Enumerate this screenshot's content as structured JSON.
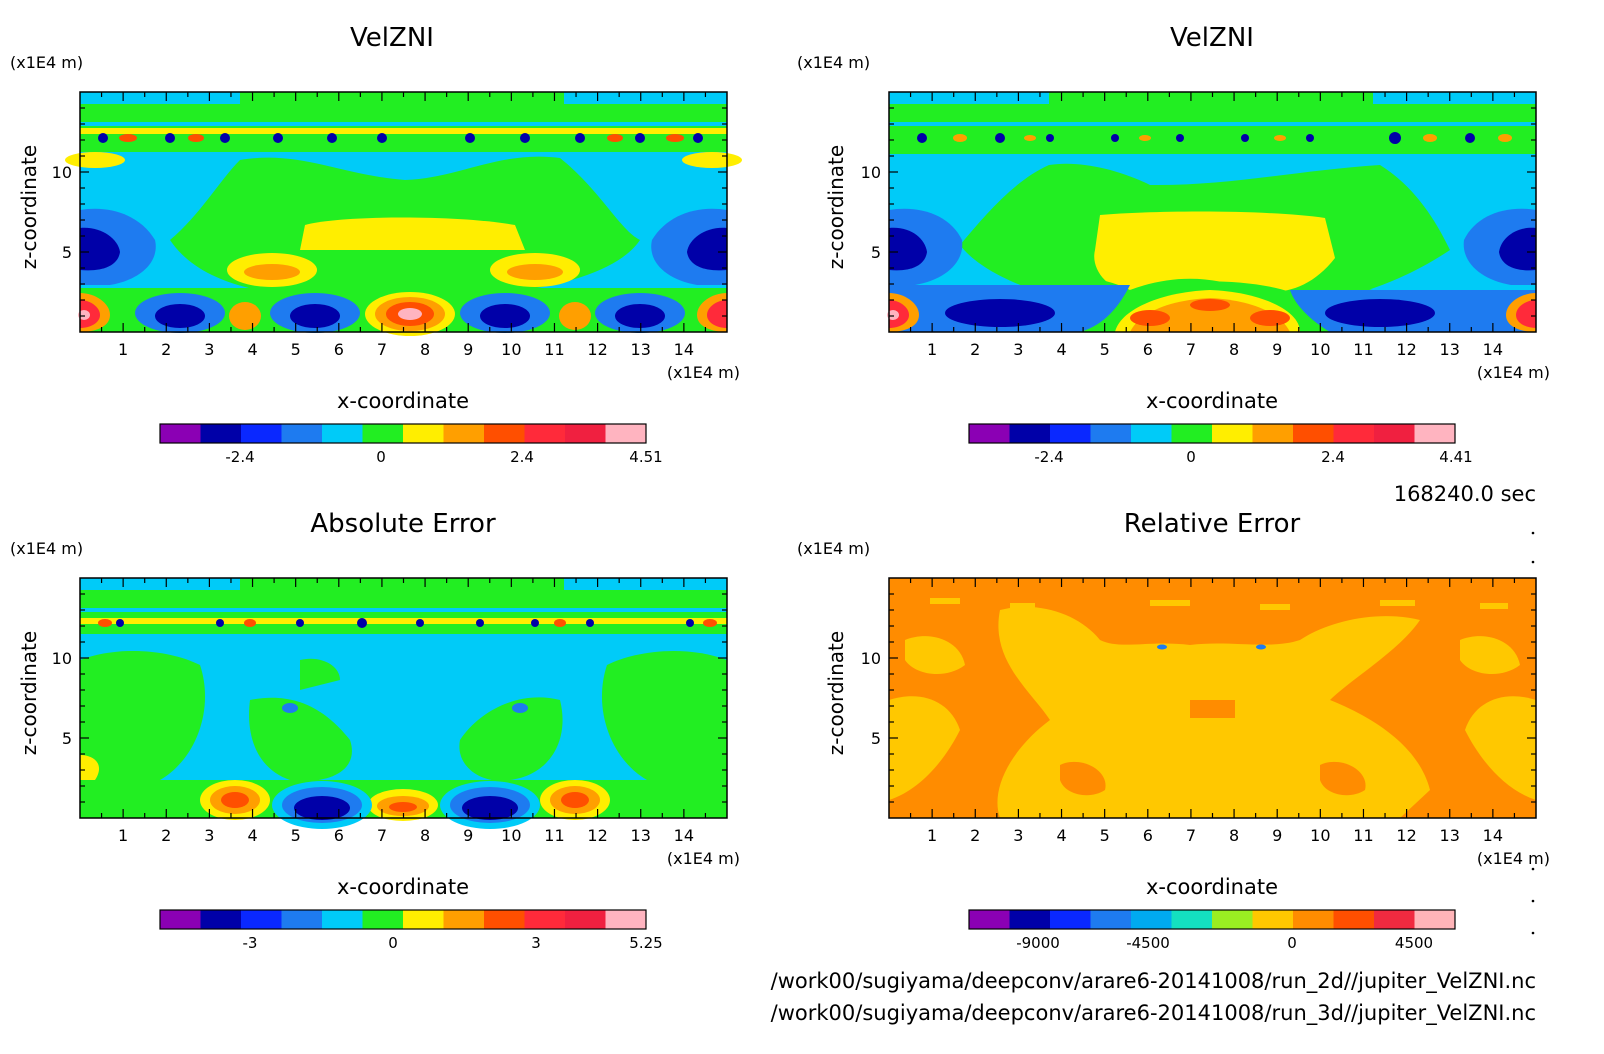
{
  "time_label": "168240.0 sec",
  "file_paths": [
    "/work00/sugiyama/deepconv/arare6-20141008/run_2d//jupiter_VelZNI.nc",
    "/work00/sugiyama/deepconv/arare6-20141008/run_3d//jupiter_VelZNI.nc"
  ],
  "colors": {
    "shade12": [
      "#8b00b4",
      "#0000a8",
      "#0a28ff",
      "#1e7bf0",
      "#00cbf8",
      "#22ee22",
      "#ffee00",
      "#ff9f00",
      "#ff4f00",
      "#ff2a3a",
      "#f02040",
      "#ffb4c0"
    ],
    "relative": [
      "#8b00b4",
      "#0000a8",
      "#0a28ff",
      "#1e7bf0",
      "#00aaf0",
      "#14e0c0",
      "#9aee22",
      "#ffc800",
      "#ff8c00",
      "#ff4f00",
      "#f02a40",
      "#ffb4b8"
    ]
  },
  "chart_data": [
    {
      "type": "heatmap",
      "title": "VelZNI",
      "xlabel": "x-coordinate",
      "ylabel": "z-coordinate",
      "x_unit": "(x1E4 m)",
      "y_unit": "(x1E4 m)",
      "xlim": [
        0,
        15
      ],
      "ylim": [
        0,
        15
      ],
      "x_ticks": [
        "1",
        "2",
        "3",
        "4",
        "5",
        "6",
        "7",
        "8",
        "9",
        "10",
        "11",
        "12",
        "13",
        "14"
      ],
      "y_ticks": [
        "5",
        "10"
      ],
      "colorbar_labels": [
        "-2.4",
        "0",
        "2.4",
        "4.51"
      ],
      "colorbar_max": 4.51
    },
    {
      "type": "heatmap",
      "title": "VelZNI",
      "xlabel": "x-coordinate",
      "ylabel": "z-coordinate",
      "x_unit": "(x1E4 m)",
      "y_unit": "(x1E4 m)",
      "xlim": [
        0,
        15
      ],
      "ylim": [
        0,
        15
      ],
      "x_ticks": [
        "1",
        "2",
        "3",
        "4",
        "5",
        "6",
        "7",
        "8",
        "9",
        "10",
        "11",
        "12",
        "13",
        "14"
      ],
      "y_ticks": [
        "5",
        "10"
      ],
      "colorbar_labels": [
        "-2.4",
        "0",
        "2.4",
        "4.41"
      ],
      "colorbar_max": 4.41
    },
    {
      "type": "heatmap",
      "title": "Absolute Error",
      "xlabel": "x-coordinate",
      "ylabel": "z-coordinate",
      "x_unit": "(x1E4 m)",
      "y_unit": "(x1E4 m)",
      "xlim": [
        0,
        15
      ],
      "ylim": [
        0,
        15
      ],
      "x_ticks": [
        "1",
        "2",
        "3",
        "4",
        "5",
        "6",
        "7",
        "8",
        "9",
        "10",
        "11",
        "12",
        "13",
        "14"
      ],
      "y_ticks": [
        "5",
        "10"
      ],
      "colorbar_labels": [
        "-3",
        "0",
        "3",
        "5.25"
      ],
      "colorbar_max": 5.25
    },
    {
      "type": "heatmap",
      "title": "Relative Error",
      "xlabel": "x-coordinate",
      "ylabel": "z-coordinate",
      "x_unit": "(x1E4 m)",
      "y_unit": "(x1E4 m)",
      "xlim": [
        0,
        15
      ],
      "ylim": [
        0,
        15
      ],
      "x_ticks": [
        "1",
        "2",
        "3",
        "4",
        "5",
        "6",
        "7",
        "8",
        "9",
        "10",
        "11",
        "12",
        "13",
        "14"
      ],
      "y_ticks": [
        "5",
        "10"
      ],
      "colorbar_labels": [
        "-9000",
        "-4500",
        "0",
        "4500"
      ]
    }
  ]
}
